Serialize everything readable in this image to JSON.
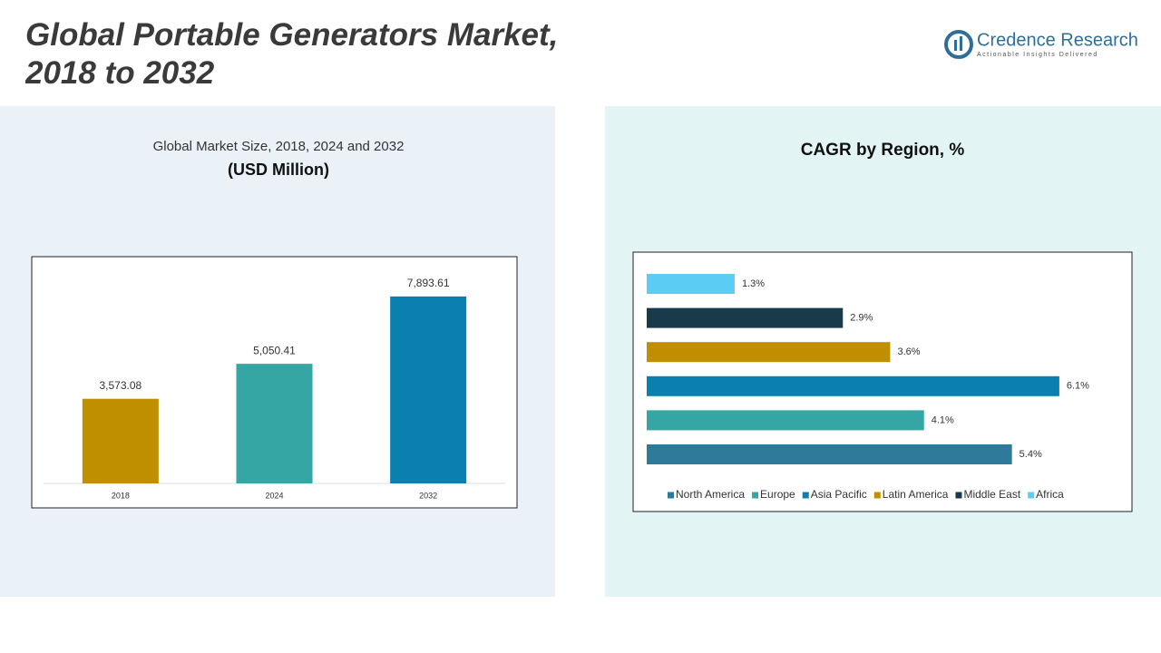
{
  "header": {
    "title": "Global Portable Generators Market, 2018 to 2032",
    "logo_name": "Credence Research",
    "logo_tagline": "Actionable Insights Delivered"
  },
  "chart_data": [
    {
      "type": "bar",
      "title": "Global Market Size, 2018, 2024 and 2032",
      "subtitle": "(USD Million)",
      "categories": [
        "2018",
        "2024",
        "2032"
      ],
      "values": [
        3573.08,
        5050.41,
        7893.61
      ],
      "value_labels": [
        "3,573.08",
        "5,050.41",
        "7,893.61"
      ],
      "colors": [
        "#bf8f00",
        "#35a6a4",
        "#0a7fb0"
      ],
      "ylim": [
        0,
        9000
      ]
    },
    {
      "type": "hbar",
      "title": "CAGR by Region, %",
      "categories": [
        "North America",
        "Europe",
        "Asia Pacific",
        "Latin America",
        "Middle East",
        "Africa"
      ],
      "values": [
        5.4,
        4.1,
        6.1,
        3.6,
        2.9,
        1.3
      ],
      "value_labels": [
        "5.4%",
        "4.1%",
        "6.1%",
        "3.6%",
        "2.9%",
        "1.3%"
      ],
      "colors": [
        "#2e7a9a",
        "#35a6a4",
        "#0a7fb0",
        "#bf8f00",
        "#183a4a",
        "#5bcdf5"
      ],
      "xlim": [
        0,
        7
      ],
      "legend": "bottom"
    }
  ]
}
